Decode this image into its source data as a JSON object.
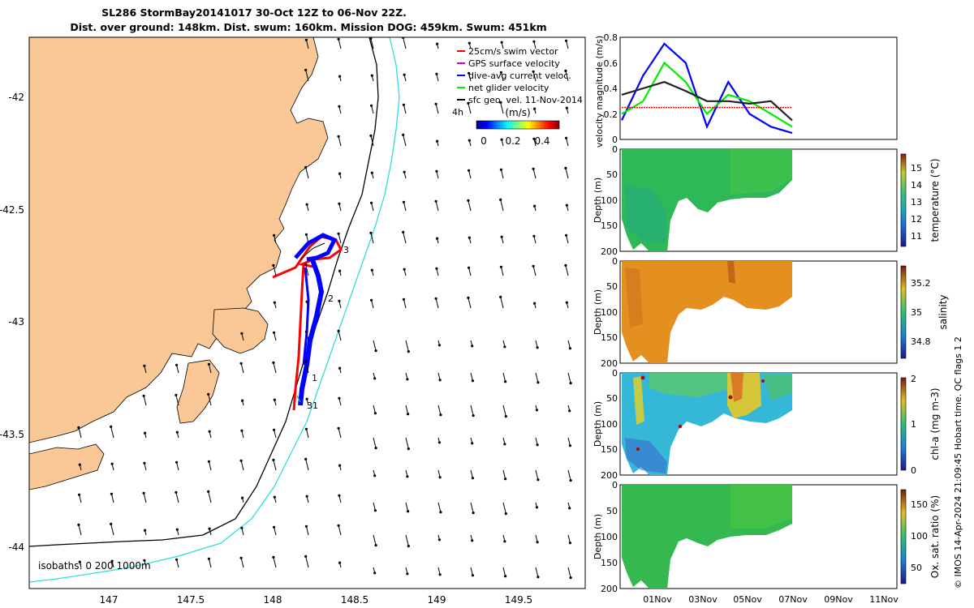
{
  "header": {
    "title_line1": "SL286 StormBay20141017 30-Oct 12Z to 06-Nov 22Z.",
    "title_line2": "Dist. over ground: 148km. Dist. swum: 160km. Mission DOG: 459km. Swum: 451km"
  },
  "map": {
    "x_ticks": [
      "147",
      "147.5",
      "148",
      "148.5",
      "149",
      "149.5"
    ],
    "y_ticks": [
      "-42",
      "-42.5",
      "-43",
      "-43.5",
      "-44"
    ],
    "x_range": [
      146.5,
      149.85
    ],
    "y_range": [
      -44.2,
      -41.8
    ],
    "legend": [
      {
        "label": "25cm/s swim vector",
        "color": "#ff0000"
      },
      {
        "label": "GPS surface velocity",
        "color": "#cc00cc"
      },
      {
        "label": "dive-avg current veloc.",
        "color": "#0000ff"
      },
      {
        "label": "net glider velocity",
        "color": "#00ee00"
      },
      {
        "label": "sfc geo. vel. 11-Nov-2014",
        "color": "#000000"
      }
    ],
    "time_label": "4h",
    "colorbar_title": "(m/s)",
    "colorbar_ticks": [
      "0",
      "0.2",
      "0.4"
    ],
    "isobath_label": "isobaths: 0   200  1000m",
    "track_markers": [
      "3",
      "2",
      "1",
      "31"
    ],
    "colors": {
      "land": "#f9c896",
      "isobath_200": "#000000",
      "isobath_1000": "#33dddd"
    }
  },
  "panels": {
    "x_ticks": [
      "01Nov",
      "03Nov",
      "05Nov",
      "07Nov",
      "09Nov",
      "11Nov"
    ],
    "depth_ticks": [
      "0",
      "50",
      "100",
      "150",
      "200"
    ],
    "depth_label": "Depth (m)",
    "velocity": {
      "ylabel": "velocity magnitude (m/s)",
      "y_ticks": [
        "0",
        "0.2",
        "0.4",
        "0.6",
        "0.8"
      ]
    },
    "temperature": {
      "cbar_label": "temperature (°C)",
      "cbar_ticks": [
        "11",
        "12",
        "13",
        "14",
        "15"
      ]
    },
    "salinity": {
      "cbar_label": "salinity",
      "cbar_ticks": [
        "34.8",
        "35",
        "35.2"
      ]
    },
    "chla": {
      "cbar_label": "chl-a (mg m-3)",
      "cbar_ticks": [
        "0",
        "1",
        "2"
      ]
    },
    "oxygen": {
      "cbar_label": "Ox. sat. ratio (%)",
      "cbar_ticks": [
        "50",
        "100",
        "150"
      ]
    }
  },
  "footer": {
    "credit": "© IMOS 14-Apr-2024 21:09:45 Hobart time. QC flags 1  2"
  },
  "chart_data": [
    {
      "type": "line",
      "title": "",
      "x": [
        "30-Oct",
        "31-Oct",
        "01-Nov",
        "02-Nov",
        "03-Nov",
        "04-Nov",
        "05-Nov",
        "06-Nov",
        "07-Nov"
      ],
      "ylim": [
        0,
        0.8
      ],
      "series": [
        {
          "name": "dive-avg current veloc.",
          "color": "#0000ff",
          "values": [
            0.15,
            0.5,
            0.75,
            0.6,
            0.1,
            0.45,
            0.2,
            0.1,
            0.05
          ]
        },
        {
          "name": "net glider velocity",
          "color": "#00ee00",
          "values": [
            0.2,
            0.3,
            0.6,
            0.45,
            0.2,
            0.35,
            0.3,
            0.2,
            0.1
          ]
        },
        {
          "name": "25cm/s swim vector",
          "color": "#ff0000",
          "values": [
            0.25,
            0.25,
            0.25,
            0.25,
            0.25,
            0.25,
            0.25,
            0.25,
            0.25
          ]
        },
        {
          "name": "sfc geo. vel. 11-Nov-2014",
          "color": "#222222",
          "values": [
            0.35,
            0.4,
            0.45,
            0.38,
            0.3,
            0.3,
            0.28,
            0.3,
            0.15
          ]
        }
      ]
    },
    {
      "type": "heatmap",
      "ylabel": "Depth (m)",
      "cbar_label": "temperature (°C)",
      "value_range": [
        10.5,
        15.8
      ],
      "typical_value": 13
    }
  ]
}
